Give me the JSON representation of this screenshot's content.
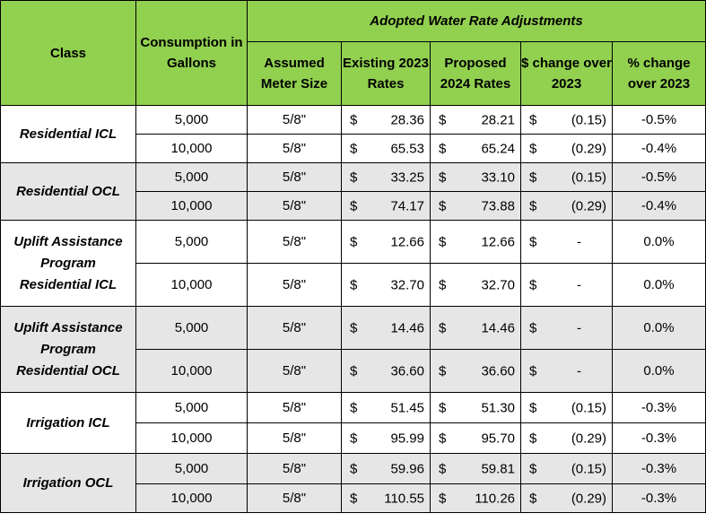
{
  "header": {
    "class": "Class",
    "consumption": "Consumption in Gallons",
    "group": "Adopted Water Rate Adjustments",
    "meter": "Assumed Meter Size",
    "existing": "Existing 2023 Rates",
    "proposed": "Proposed 2024 Rates",
    "dollar_change": "$ change over 2023",
    "pct_change": "% change over 2023"
  },
  "currency_symbol": "$",
  "groups": [
    {
      "class": "Residential ICL",
      "rows": [
        {
          "gallons": "5,000",
          "meter": "5/8\"",
          "existing": "28.36",
          "proposed": "28.21",
          "dchange": "(0.15)",
          "pchange": "-0.5%"
        },
        {
          "gallons": "10,000",
          "meter": "5/8\"",
          "existing": "65.53",
          "proposed": "65.24",
          "dchange": "(0.29)",
          "pchange": "-0.4%"
        }
      ]
    },
    {
      "class": "Residential OCL",
      "rows": [
        {
          "gallons": "5,000",
          "meter": "5/8\"",
          "existing": "33.25",
          "proposed": "33.10",
          "dchange": "(0.15)",
          "pchange": "-0.5%"
        },
        {
          "gallons": "10,000",
          "meter": "5/8\"",
          "existing": "74.17",
          "proposed": "73.88",
          "dchange": "(0.29)",
          "pchange": "-0.4%"
        }
      ]
    },
    {
      "class": "Uplift Assistance Program Residential ICL",
      "rows": [
        {
          "gallons": "5,000",
          "meter": "5/8\"",
          "existing": "12.66",
          "proposed": "12.66",
          "dchange": "-",
          "pchange": "0.0%"
        },
        {
          "gallons": "10,000",
          "meter": "5/8\"",
          "existing": "32.70",
          "proposed": "32.70",
          "dchange": "-",
          "pchange": "0.0%"
        }
      ]
    },
    {
      "class": "Uplift Assistance Program Residential OCL",
      "rows": [
        {
          "gallons": "5,000",
          "meter": "5/8\"",
          "existing": "14.46",
          "proposed": "14.46",
          "dchange": "-",
          "pchange": "0.0%"
        },
        {
          "gallons": "10,000",
          "meter": "5/8\"",
          "existing": "36.60",
          "proposed": "36.60",
          "dchange": "-",
          "pchange": "0.0%"
        }
      ]
    },
    {
      "class": "Irrigation ICL",
      "rows": [
        {
          "gallons": "5,000",
          "meter": "5/8\"",
          "existing": "51.45",
          "proposed": "51.30",
          "dchange": "(0.15)",
          "pchange": "-0.3%"
        },
        {
          "gallons": "10,000",
          "meter": "5/8\"",
          "existing": "95.99",
          "proposed": "95.70",
          "dchange": "(0.29)",
          "pchange": "-0.3%"
        }
      ]
    },
    {
      "class": "Irrigation OCL",
      "rows": [
        {
          "gallons": "5,000",
          "meter": "5/8\"",
          "existing": "59.96",
          "proposed": "59.81",
          "dchange": "(0.15)",
          "pchange": "-0.3%"
        },
        {
          "gallons": "10,000",
          "meter": "5/8\"",
          "existing": "110.55",
          "proposed": "110.26",
          "dchange": "(0.29)",
          "pchange": "-0.3%"
        }
      ]
    }
  ],
  "colors": {
    "header_green": "#92d050",
    "band_gray": "#e7e6e6"
  }
}
